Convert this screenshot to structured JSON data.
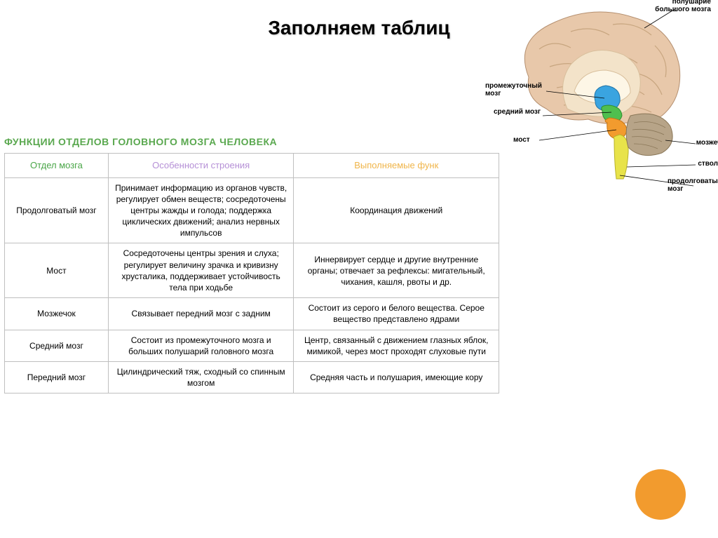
{
  "title": "Заполняем  таблиц",
  "table_header": "ФУНКЦИИ ОТДЕЛОВ ГОЛОВНОГО МОЗГА ЧЕЛОВЕКА",
  "header_color": "#5aa84f",
  "columns": [
    {
      "label": "Отдел мозга",
      "color": "#4aa648"
    },
    {
      "label": "Особенности строения",
      "color": "#b58fd6"
    },
    {
      "label": "Выполняемые функ",
      "color": "#f0b54a"
    }
  ],
  "rows": [
    {
      "section": "Продолговатый мозг",
      "structure": "Принимает информацию из органов чувств, регулирует обмен веществ; сосредоточены центры жажды и голода; поддержка циклических движений; анализ нервных импульсов",
      "function": "Координация движений"
    },
    {
      "section": "Мост",
      "structure": "Сосредоточены центры зрения и слуха; регулирует величину зрачка и кривизну хрусталика, поддерживает устойчивость тела при ходьбе",
      "function": "Иннервирует сердце и другие внутренние органы; отвечает за рефлексы: мигательный, чихания, кашля, рвоты и др."
    },
    {
      "section": "Мозжечок",
      "structure": "Связывает передний мозг с задним",
      "function": "Состоит из серого и белого вещества. Серое вещество представлено ядрами"
    },
    {
      "section": "Средний мозг",
      "structure": "Состоит из промежуточного мозга и больших полушарий головного мозга",
      "function": "Центр, связанный с движением глазных яблок, мимикой, через мост проходят слуховые пути"
    },
    {
      "section": "Передний мозг",
      "structure": "Цилиндрический тяж, сходный со спинным мозгом",
      "function": "Средняя часть и полушария, имеющие кору"
    }
  ],
  "brain_labels": {
    "hemisphere": "полушарие большого мозга",
    "diencephalon": "промежуточный мозг",
    "midbrain": "средний мозг",
    "pons": "мост",
    "cerebellum": "мозжечок",
    "stem": "ствол",
    "medulla": "продолговатый мозг"
  },
  "brain_colors": {
    "cortex": "#e8c8aa",
    "cortex_inner": "#f3e3c9",
    "diencephalon": "#3aa4e0",
    "midbrain": "#4fbf4f",
    "pons": "#f29b2e",
    "medulla": "#e8e34a",
    "cerebellum": "#b7a488",
    "corpus": "#fdf6e6"
  },
  "accent_circle_color": "#f29b2e",
  "background": "#ffffff"
}
